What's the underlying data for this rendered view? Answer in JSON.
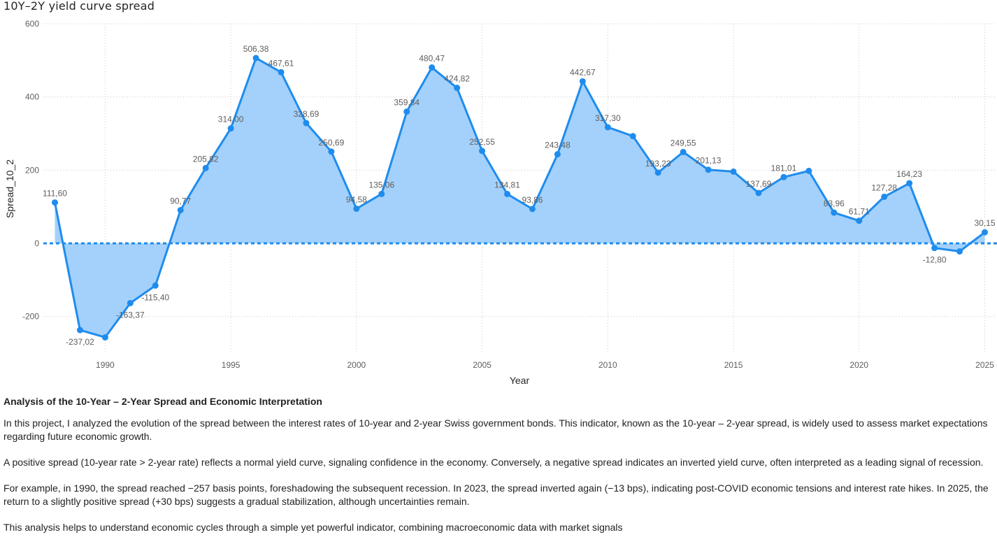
{
  "chart_title": "10Y–2Y yield curve spread",
  "chart_data": {
    "type": "area",
    "title": "10Y–2Y yield curve spread",
    "xlabel": "Year",
    "ylabel": "Spread_10_2",
    "xlim": [
      1988,
      2025
    ],
    "ylim": [
      -300,
      600
    ],
    "yticks": [
      -200,
      0,
      200,
      400,
      600
    ],
    "xticks": [
      1990,
      1995,
      2000,
      2005,
      2010,
      2015,
      2020,
      2025
    ],
    "grid": true,
    "reference_line": 0,
    "colors": {
      "line": "#1f8ced",
      "fill": "#a3d1fb",
      "grid": "#c8c8c8",
      "reference": "#1f8ced"
    },
    "points": [
      {
        "x": 1988,
        "y": 111.6,
        "label": "111,60"
      },
      {
        "x": 1989,
        "y": -237.02,
        "label": "-237,02"
      },
      {
        "x": 1990,
        "y": -257,
        "label": ""
      },
      {
        "x": 1991,
        "y": -163.37,
        "label": "-163,37"
      },
      {
        "x": 1992,
        "y": -115.4,
        "label": "-115,40"
      },
      {
        "x": 1993,
        "y": 90.77,
        "label": "90,77"
      },
      {
        "x": 1994,
        "y": 205.82,
        "label": "205,82"
      },
      {
        "x": 1995,
        "y": 314.0,
        "label": "314,00"
      },
      {
        "x": 1996,
        "y": 506.38,
        "label": "506,38"
      },
      {
        "x": 1997,
        "y": 467.61,
        "label": "467,61"
      },
      {
        "x": 1998,
        "y": 328.69,
        "label": "328,69"
      },
      {
        "x": 1999,
        "y": 250.69,
        "label": "250,69"
      },
      {
        "x": 2000,
        "y": 94.58,
        "label": "94,58"
      },
      {
        "x": 2001,
        "y": 135.06,
        "label": "135,06"
      },
      {
        "x": 2002,
        "y": 359.84,
        "label": "359,84"
      },
      {
        "x": 2003,
        "y": 480.47,
        "label": "480,47"
      },
      {
        "x": 2004,
        "y": 424.82,
        "label": "424,82"
      },
      {
        "x": 2005,
        "y": 252.55,
        "label": "252,55"
      },
      {
        "x": 2006,
        "y": 134.81,
        "label": "134,81"
      },
      {
        "x": 2007,
        "y": 93.86,
        "label": "93,86"
      },
      {
        "x": 2008,
        "y": 243.48,
        "label": "243,48"
      },
      {
        "x": 2009,
        "y": 442.67,
        "label": "442,67"
      },
      {
        "x": 2010,
        "y": 317.3,
        "label": "317,30"
      },
      {
        "x": 2011,
        "y": 293,
        "label": ""
      },
      {
        "x": 2012,
        "y": 193.23,
        "label": "193,23"
      },
      {
        "x": 2013,
        "y": 249.55,
        "label": "249,55"
      },
      {
        "x": 2014,
        "y": 201.13,
        "label": "201,13"
      },
      {
        "x": 2015,
        "y": 196,
        "label": ""
      },
      {
        "x": 2016,
        "y": 137.69,
        "label": "137,69"
      },
      {
        "x": 2017,
        "y": 181.01,
        "label": "181,01"
      },
      {
        "x": 2018,
        "y": 198,
        "label": ""
      },
      {
        "x": 2019,
        "y": 83.96,
        "label": "83,96"
      },
      {
        "x": 2020,
        "y": 61.71,
        "label": "61,71"
      },
      {
        "x": 2021,
        "y": 127.28,
        "label": "127,28"
      },
      {
        "x": 2022,
        "y": 164.23,
        "label": "164,23"
      },
      {
        "x": 2023,
        "y": -12.8,
        "label": "-12,80"
      },
      {
        "x": 2024,
        "y": -22,
        "label": ""
      },
      {
        "x": 2025,
        "y": 30.15,
        "label": "30,15"
      }
    ]
  },
  "analysis": {
    "heading": "Analysis of the 10-Year – 2-Year Spread and Economic Interpretation",
    "p1": "In this project, I analyzed the evolution of the spread between the interest rates of 10-year and 2-year Swiss government bonds. This indicator, known as the 10-year – 2-year spread, is widely used to assess market expectations regarding future economic growth.",
    "p2": "A positive spread (10-year rate > 2-year rate) reflects a normal yield curve, signaling confidence in the economy. Conversely, a negative spread indicates an inverted yield curve, often interpreted as a leading signal of recession.",
    "p3": "For example, in 1990, the spread reached −257 basis points, foreshadowing the subsequent recession. In 2023, the spread inverted again (−13 bps), indicating post-COVID economic tensions and interest rate hikes. In 2025, the return to a slightly positive spread (+30 bps) suggests a gradual stabilization, although uncertainties remain.",
    "p4": "This analysis helps to understand economic cycles through a simple yet powerful indicator, combining macroeconomic data with market signals"
  }
}
